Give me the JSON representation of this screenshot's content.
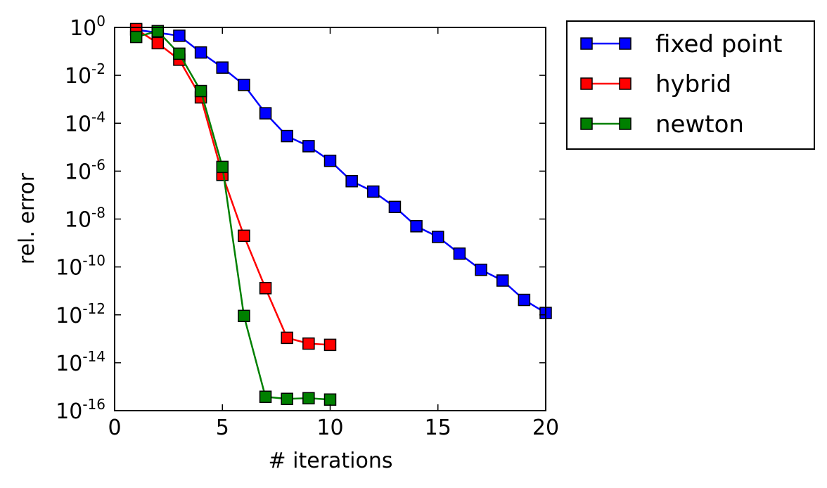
{
  "chart_data": {
    "type": "line",
    "xlabel": "# iterations",
    "ylabel": "rel. error",
    "xlim": [
      0,
      20
    ],
    "ylim": [
      1e-16,
      1
    ],
    "yscale": "log",
    "xticks": [
      0,
      5,
      10,
      15,
      20
    ],
    "xtick_labels": [
      "0",
      "5",
      "10",
      "15",
      "20"
    ],
    "yticks": [
      0,
      -2,
      -4,
      -6,
      -8,
      -10,
      -12,
      -14,
      -16
    ],
    "ytick_base": "10",
    "ytick_exponents": [
      "0",
      "-2",
      "-4",
      "-6",
      "-8",
      "-10",
      "-12",
      "-14",
      "-16"
    ],
    "grid": false,
    "legend_position": "outside-top-right",
    "series": [
      {
        "name": "fixed point",
        "color": "#0000ff",
        "marker": "square",
        "x": [
          1,
          2,
          3,
          4,
          5,
          6,
          7,
          8,
          9,
          10,
          11,
          12,
          13,
          14,
          15,
          16,
          17,
          18,
          19,
          20
        ],
        "y": [
          0.8,
          0.6,
          0.45,
          0.09,
          0.021,
          0.004,
          0.00026,
          2.9e-05,
          1.1e-05,
          2.7e-06,
          3.8e-07,
          1.4e-07,
          3.2e-08,
          5e-09,
          1.8e-09,
          3.6e-10,
          7.6e-11,
          2.7e-11,
          4.2e-12,
          1.2e-12
        ]
      },
      {
        "name": "hybrid",
        "color": "#ff0000",
        "marker": "square",
        "x": [
          1,
          2,
          3,
          4,
          5,
          6,
          7,
          8,
          9,
          10
        ],
        "y": [
          0.85,
          0.22,
          0.045,
          0.0012,
          7e-07,
          2e-09,
          1.3e-11,
          1.1e-13,
          6.3e-14,
          5.6e-14
        ]
      },
      {
        "name": "newton",
        "color": "#008000",
        "marker": "square",
        "x": [
          1,
          2,
          3,
          4,
          5,
          6,
          7,
          8,
          9,
          10
        ],
        "y": [
          0.4,
          0.7,
          0.08,
          0.0022,
          1.5e-06,
          9e-13,
          3.8e-16,
          3.1e-16,
          3.3e-16,
          2.9e-16
        ]
      }
    ]
  }
}
